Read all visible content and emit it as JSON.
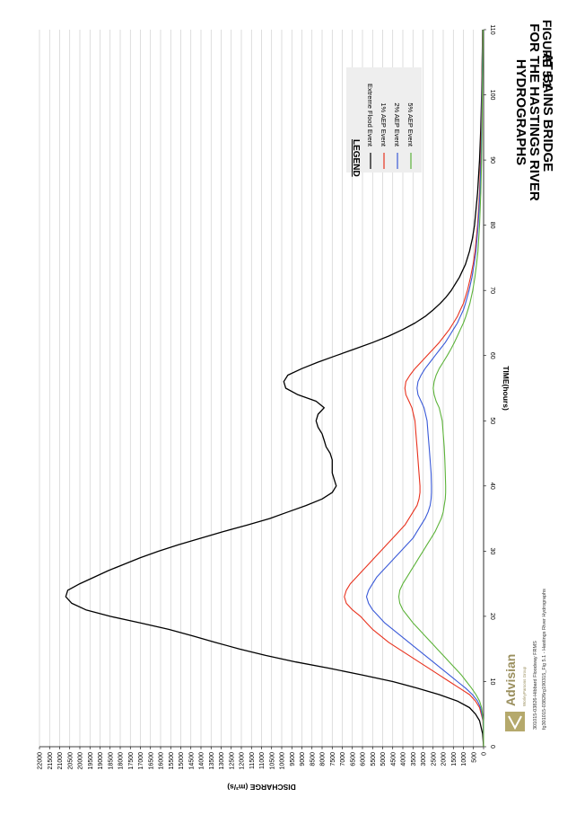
{
  "figure_label": "FIGURE 5.1",
  "title_lines": [
    "HYDROGRAPHS",
    "FOR THE HASTINGS RIVER",
    "AT BAINS BRIDGE"
  ],
  "legend_title": "LEGEND",
  "footer": {
    "logo": "Advisian",
    "logo_tagline": "WorleyParsons Group",
    "line1": "301015-03826-Hibbard Floodway FRMS",
    "line2": "fg301015-03826rg190315_Fig 5.1 - Hastings River Hydrographs"
  },
  "chart_data": {
    "type": "line",
    "xlabel": "TIME(hours)",
    "ylabel": "DISCHARGE (m³/s)",
    "xlim": [
      0,
      110
    ],
    "ylim": [
      0,
      22000
    ],
    "x_ticks": [
      0,
      10,
      20,
      30,
      40,
      50,
      60,
      70,
      80,
      90,
      100,
      110
    ],
    "y_ticks": [
      0,
      500,
      1000,
      1500,
      2000,
      2500,
      3000,
      3500,
      4000,
      4500,
      5000,
      5500,
      6000,
      6500,
      7000,
      7500,
      8000,
      8500,
      9000,
      9500,
      10000,
      10500,
      11000,
      11500,
      12000,
      12500,
      13000,
      13500,
      14000,
      14500,
      15000,
      15500,
      16000,
      16500,
      17000,
      17500,
      18000,
      18500,
      19000,
      19500,
      20000,
      20500,
      21000,
      21500,
      22000
    ],
    "grid": true,
    "legend_position": "top-right",
    "series": [
      {
        "name": "Extreme Flood Event",
        "color": "#000000",
        "x": [
          0,
          2,
          4,
          5,
          6,
          7,
          8,
          9,
          10,
          11,
          12,
          13,
          14,
          15,
          16,
          17,
          18,
          19,
          20,
          21,
          22,
          23,
          24,
          25,
          26,
          27,
          28,
          29,
          30,
          31,
          32,
          33,
          34,
          35,
          36,
          37,
          38,
          39,
          40,
          41,
          42,
          43,
          44,
          45,
          46,
          47,
          48,
          49,
          50,
          51,
          52,
          53,
          54,
          55,
          56,
          57,
          58,
          59,
          60,
          61,
          62,
          63,
          64,
          65,
          66,
          67,
          68,
          69,
          70,
          72,
          74,
          76,
          78,
          80,
          85,
          90,
          95,
          100,
          105,
          110
        ],
        "y": [
          0,
          50,
          200,
          400,
          700,
          1300,
          2200,
          3300,
          4500,
          6000,
          7600,
          9300,
          10800,
          12100,
          13300,
          14400,
          15600,
          17000,
          18500,
          19700,
          20400,
          20700,
          20600,
          20000,
          19300,
          18600,
          17800,
          17000,
          16100,
          15100,
          14000,
          12900,
          11700,
          10600,
          9700,
          8800,
          8000,
          7500,
          7300,
          7400,
          7500,
          7500,
          7500,
          7600,
          7800,
          7900,
          8000,
          8200,
          8300,
          8200,
          7900,
          8300,
          9200,
          9800,
          9900,
          9700,
          9000,
          8200,
          7300,
          6400,
          5500,
          4700,
          4000,
          3400,
          2900,
          2500,
          2150,
          1850,
          1600,
          1200,
          900,
          700,
          550,
          450,
          300,
          200,
          140,
          100,
          70,
          50
        ]
      },
      {
        "name": "1% AEP Event",
        "color": "#e8321e",
        "x": [
          0,
          4,
          6,
          7,
          8,
          9,
          10,
          11,
          12,
          13,
          14,
          15,
          16,
          17,
          18,
          19,
          20,
          21,
          22,
          23,
          24,
          25,
          26,
          27,
          28,
          29,
          30,
          31,
          32,
          33,
          34,
          35,
          36,
          37,
          38,
          39,
          40,
          42,
          44,
          46,
          48,
          50,
          52,
          53,
          54,
          55,
          56,
          57,
          58,
          59,
          60,
          61,
          62,
          63,
          64,
          65,
          66,
          67,
          68,
          70,
          72,
          74,
          76,
          80,
          85,
          90,
          95,
          100,
          105,
          110
        ],
        "y": [
          0,
          30,
          200,
          400,
          700,
          1200,
          1700,
          2200,
          2700,
          3200,
          3700,
          4200,
          4700,
          5100,
          5500,
          5800,
          6100,
          6500,
          6800,
          6900,
          6800,
          6600,
          6300,
          6000,
          5700,
          5400,
          5100,
          4800,
          4500,
          4200,
          3900,
          3700,
          3500,
          3300,
          3200,
          3150,
          3150,
          3200,
          3250,
          3300,
          3350,
          3400,
          3550,
          3700,
          3850,
          3900,
          3850,
          3650,
          3400,
          3100,
          2800,
          2500,
          2200,
          1950,
          1700,
          1500,
          1300,
          1150,
          1000,
          800,
          650,
          520,
          420,
          300,
          200,
          150,
          110,
          90,
          70,
          50
        ]
      },
      {
        "name": "2% AEP Event",
        "color": "#3a5ad8",
        "x": [
          0,
          4,
          6,
          7,
          8,
          9,
          10,
          11,
          12,
          13,
          14,
          15,
          16,
          17,
          18,
          19,
          20,
          21,
          22,
          23,
          24,
          25,
          26,
          27,
          28,
          29,
          30,
          31,
          32,
          33,
          34,
          35,
          36,
          37,
          38,
          39,
          40,
          42,
          44,
          46,
          48,
          50,
          52,
          53,
          54,
          55,
          56,
          57,
          58,
          59,
          60,
          61,
          62,
          63,
          64,
          65,
          66,
          67,
          68,
          70,
          72,
          74,
          76,
          80,
          85,
          90,
          95,
          100,
          105,
          110
        ],
        "y": [
          0,
          20,
          150,
          300,
          550,
          900,
          1300,
          1700,
          2100,
          2500,
          2900,
          3300,
          3700,
          4100,
          4500,
          4900,
          5200,
          5500,
          5700,
          5800,
          5700,
          5500,
          5300,
          5000,
          4700,
          4400,
          4100,
          3800,
          3500,
          3300,
          3100,
          2900,
          2750,
          2650,
          2600,
          2580,
          2580,
          2600,
          2650,
          2700,
          2750,
          2800,
          2950,
          3100,
          3250,
          3300,
          3250,
          3100,
          2900,
          2650,
          2400,
          2150,
          1900,
          1700,
          1500,
          1300,
          1150,
          1000,
          900,
          720,
          580,
          470,
          380,
          270,
          180,
          130,
          100,
          80,
          60,
          40
        ]
      },
      {
        "name": "5% AEP Event",
        "color": "#5db33a",
        "x": [
          0,
          4,
          6,
          7,
          8,
          9,
          10,
          11,
          12,
          13,
          14,
          15,
          16,
          17,
          18,
          19,
          20,
          21,
          22,
          23,
          24,
          25,
          26,
          27,
          28,
          29,
          30,
          31,
          32,
          33,
          34,
          35,
          36,
          37,
          38,
          39,
          40,
          42,
          44,
          46,
          48,
          50,
          52,
          53,
          54,
          55,
          56,
          57,
          58,
          59,
          60,
          61,
          62,
          63,
          64,
          65,
          66,
          67,
          68,
          70,
          72,
          74,
          76,
          80,
          85,
          90,
          95,
          100,
          105,
          110
        ],
        "y": [
          0,
          10,
          100,
          200,
          380,
          600,
          850,
          1100,
          1400,
          1700,
          2000,
          2300,
          2600,
          2900,
          3200,
          3500,
          3750,
          4000,
          4150,
          4200,
          4150,
          4000,
          3800,
          3600,
          3400,
          3200,
          3000,
          2800,
          2600,
          2400,
          2250,
          2100,
          2000,
          1950,
          1900,
          1880,
          1880,
          1900,
          1920,
          1950,
          2000,
          2050,
          2200,
          2350,
          2450,
          2500,
          2450,
          2350,
          2200,
          2000,
          1800,
          1620,
          1450,
          1300,
          1150,
          1000,
          880,
          780,
          680,
          540,
          430,
          350,
          280,
          200,
          140,
          100,
          75,
          60,
          45,
          30
        ]
      }
    ]
  }
}
